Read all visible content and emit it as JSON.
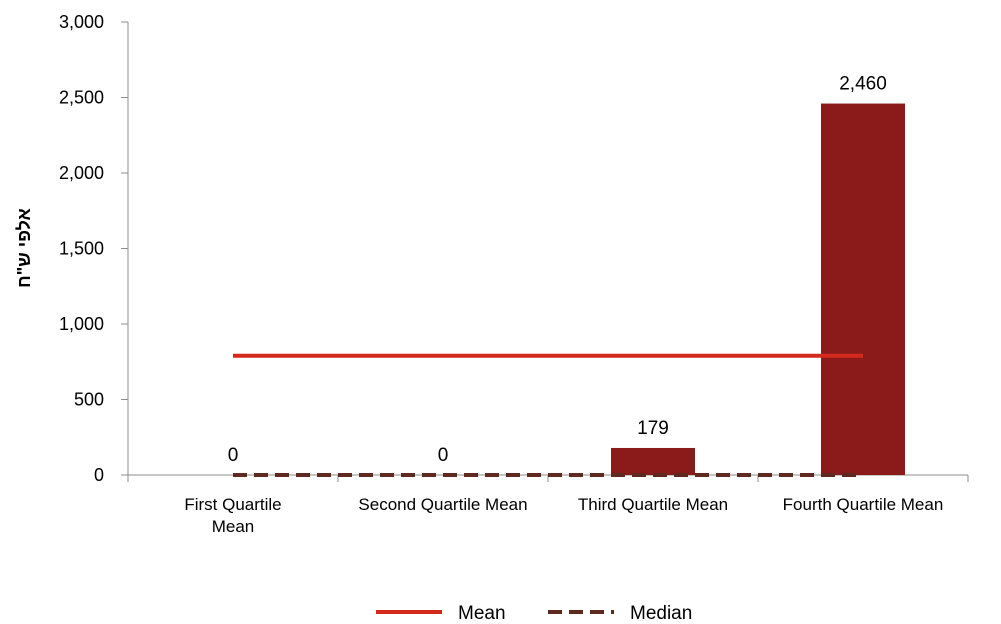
{
  "chart_data": {
    "type": "bar",
    "title": "",
    "xlabel": "",
    "ylabel": "אלפי ש\"ח",
    "ylim": [
      0,
      3000
    ],
    "yticks": [
      0,
      500,
      1000,
      1500,
      2000,
      2500,
      3000
    ],
    "ytick_labels": [
      "0",
      "500",
      "1,000",
      "1,500",
      "2,000",
      "2,500",
      "3,000"
    ],
    "categories": [
      [
        "First Quartile",
        "Mean"
      ],
      [
        "Second Quartile Mean"
      ],
      [
        "Third Quartile Mean"
      ],
      [
        "Fourth Quartile Mean"
      ]
    ],
    "bars": {
      "values": [
        0,
        0,
        179,
        2460
      ],
      "labels": [
        "0",
        "0",
        "179",
        "2,460"
      ],
      "color": "#8b1a1a"
    },
    "series": [
      {
        "name": "Mean",
        "type": "line",
        "values": [
          790,
          790,
          790,
          790
        ],
        "color": "#d42a1e",
        "style": "solid"
      },
      {
        "name": "Median",
        "type": "line",
        "values": [
          0,
          0,
          0,
          0
        ],
        "color": "#5e2a20",
        "style": "dashed"
      }
    ],
    "grid": false,
    "legend_position": "bottom"
  }
}
